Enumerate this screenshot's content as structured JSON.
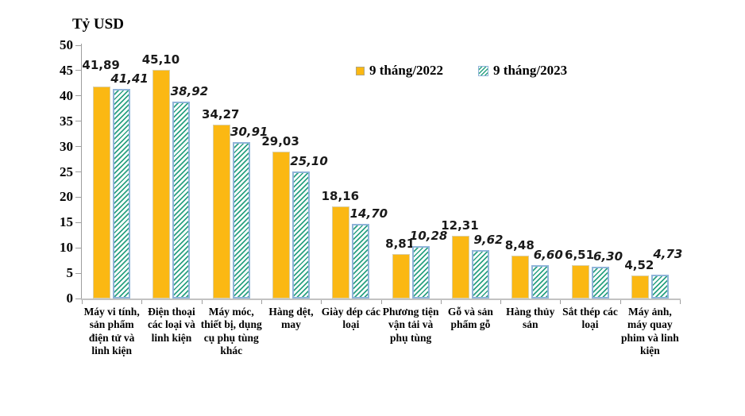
{
  "chart_data": {
    "type": "bar",
    "title": "Tỷ USD",
    "xlabel": "",
    "ylabel": "Tỷ USD",
    "ylim": [
      0,
      50
    ],
    "ytick_step": 5,
    "yticks": [
      "0",
      "5",
      "10",
      "15",
      "20",
      "25",
      "30",
      "35",
      "40",
      "45",
      "50"
    ],
    "grid": false,
    "legend_position": "top-inside",
    "value_label_decimal_separator": ",",
    "categories": [
      "Máy vi tính, sản phẩm điện tử và linh kiện",
      "Điện thoại các loại và linh kiện",
      "Máy móc, thiết bị, dụng cụ phụ tùng khác",
      "Hàng dệt, may",
      "Giày dép các loại",
      "Phương tiện vận tải và phụ tùng",
      "Gỗ và sản phẩm gỗ",
      "Hàng thủy sản",
      "Sắt thép các loại",
      "Máy ảnh, máy quay phim và linh kiện"
    ],
    "series": [
      {
        "name": "9 tháng/2022",
        "style": "solid",
        "color": "#fbb813",
        "border_color": "#d9cfa9",
        "values": [
          41.89,
          45.1,
          34.27,
          29.03,
          18.16,
          8.81,
          12.31,
          8.48,
          6.51,
          4.52
        ],
        "labels": [
          "41,89",
          "45,10",
          "34,27",
          "29,03",
          "18,16",
          "8,81",
          "12,31",
          "8,48",
          "6,51",
          "4,52"
        ]
      },
      {
        "name": "9 tháng/2023",
        "style": "hatched-diagonal",
        "color": "#2aa181",
        "border_color": "#8fb4d9",
        "values": [
          41.41,
          38.92,
          30.91,
          25.1,
          14.7,
          10.28,
          9.62,
          6.6,
          6.3,
          4.73
        ],
        "labels": [
          "41,41",
          "38,92",
          "30,91",
          "25,10",
          "14,70",
          "10,28",
          "9,62",
          "6,60",
          "6,30",
          "4,73"
        ]
      }
    ],
    "label_adjust": [
      {
        "series": 0,
        "index": 0,
        "dy": -14
      },
      {
        "series": 1,
        "index": 9,
        "dy": -13
      }
    ],
    "colors": {
      "axis": "#9e9e9e",
      "x_axis": "#c2c2c2",
      "text": "#000000",
      "background": "#ffffff"
    }
  }
}
